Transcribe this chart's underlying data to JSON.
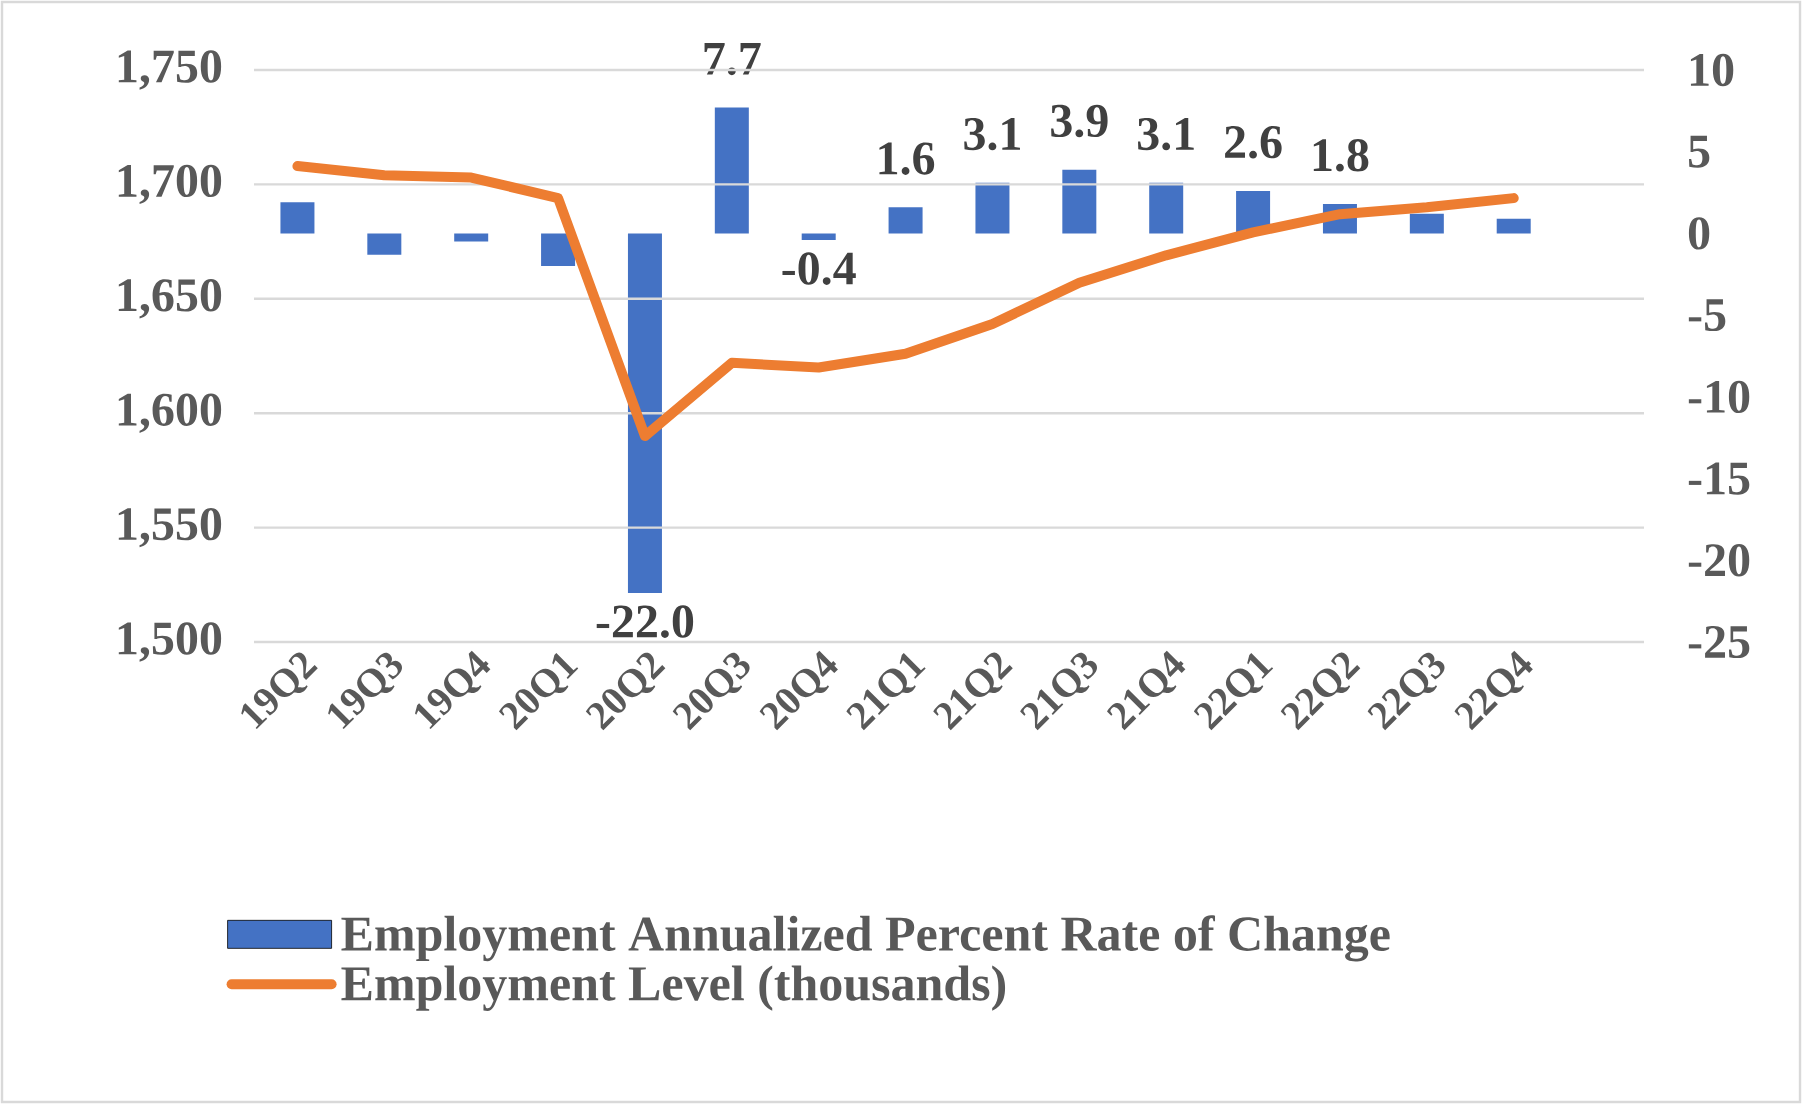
{
  "chart_data": {
    "type": "bar",
    "categories": [
      "19Q2",
      "19Q3",
      "19Q4",
      "20Q1",
      "20Q2",
      "20Q3",
      "20Q4",
      "21Q1",
      "21Q2",
      "21Q3",
      "21Q4",
      "22Q1",
      "22Q2",
      "22Q3",
      "22Q4"
    ],
    "series": [
      {
        "name": "Employment Annualized Percent Rate of Change",
        "axis": "y2",
        "color": "#4472c4",
        "values": [
          1.9,
          -1.3,
          -0.5,
          -2.0,
          -22.0,
          7.7,
          -0.4,
          1.6,
          3.1,
          3.9,
          3.1,
          2.6,
          1.8,
          1.2,
          0.9
        ],
        "value_labels": [
          null,
          null,
          null,
          null,
          "-22.0",
          "7.7",
          "-0.4",
          "1.6",
          "3.1",
          "3.9",
          "3.1",
          "2.6",
          "1.8",
          null,
          null
        ]
      },
      {
        "name": "Employment Level (thousands)",
        "type": "line",
        "axis": "y",
        "color": "#ed7d31",
        "values": [
          1708,
          1704,
          1703,
          1694,
          1590,
          1622,
          1620,
          1626,
          1639,
          1657,
          1669,
          1679,
          1687,
          1690,
          1694
        ]
      }
    ],
    "ylim": [
      1500,
      1750
    ],
    "yticks": [
      {
        "value": 1500,
        "label": "1,500"
      },
      {
        "value": 1550,
        "label": "1,550"
      },
      {
        "value": 1600,
        "label": "1,600"
      },
      {
        "value": 1650,
        "label": "1,650"
      },
      {
        "value": 1700,
        "label": "1,700"
      },
      {
        "value": 1750,
        "label": "1,750"
      }
    ],
    "y2lim": [
      -25,
      10
    ],
    "y2ticks": [
      -25,
      -20,
      -15,
      -10,
      -5,
      0,
      5,
      10
    ],
    "grid": "y",
    "legend": "bottom",
    "marker": "none",
    "line_style": "solid"
  }
}
